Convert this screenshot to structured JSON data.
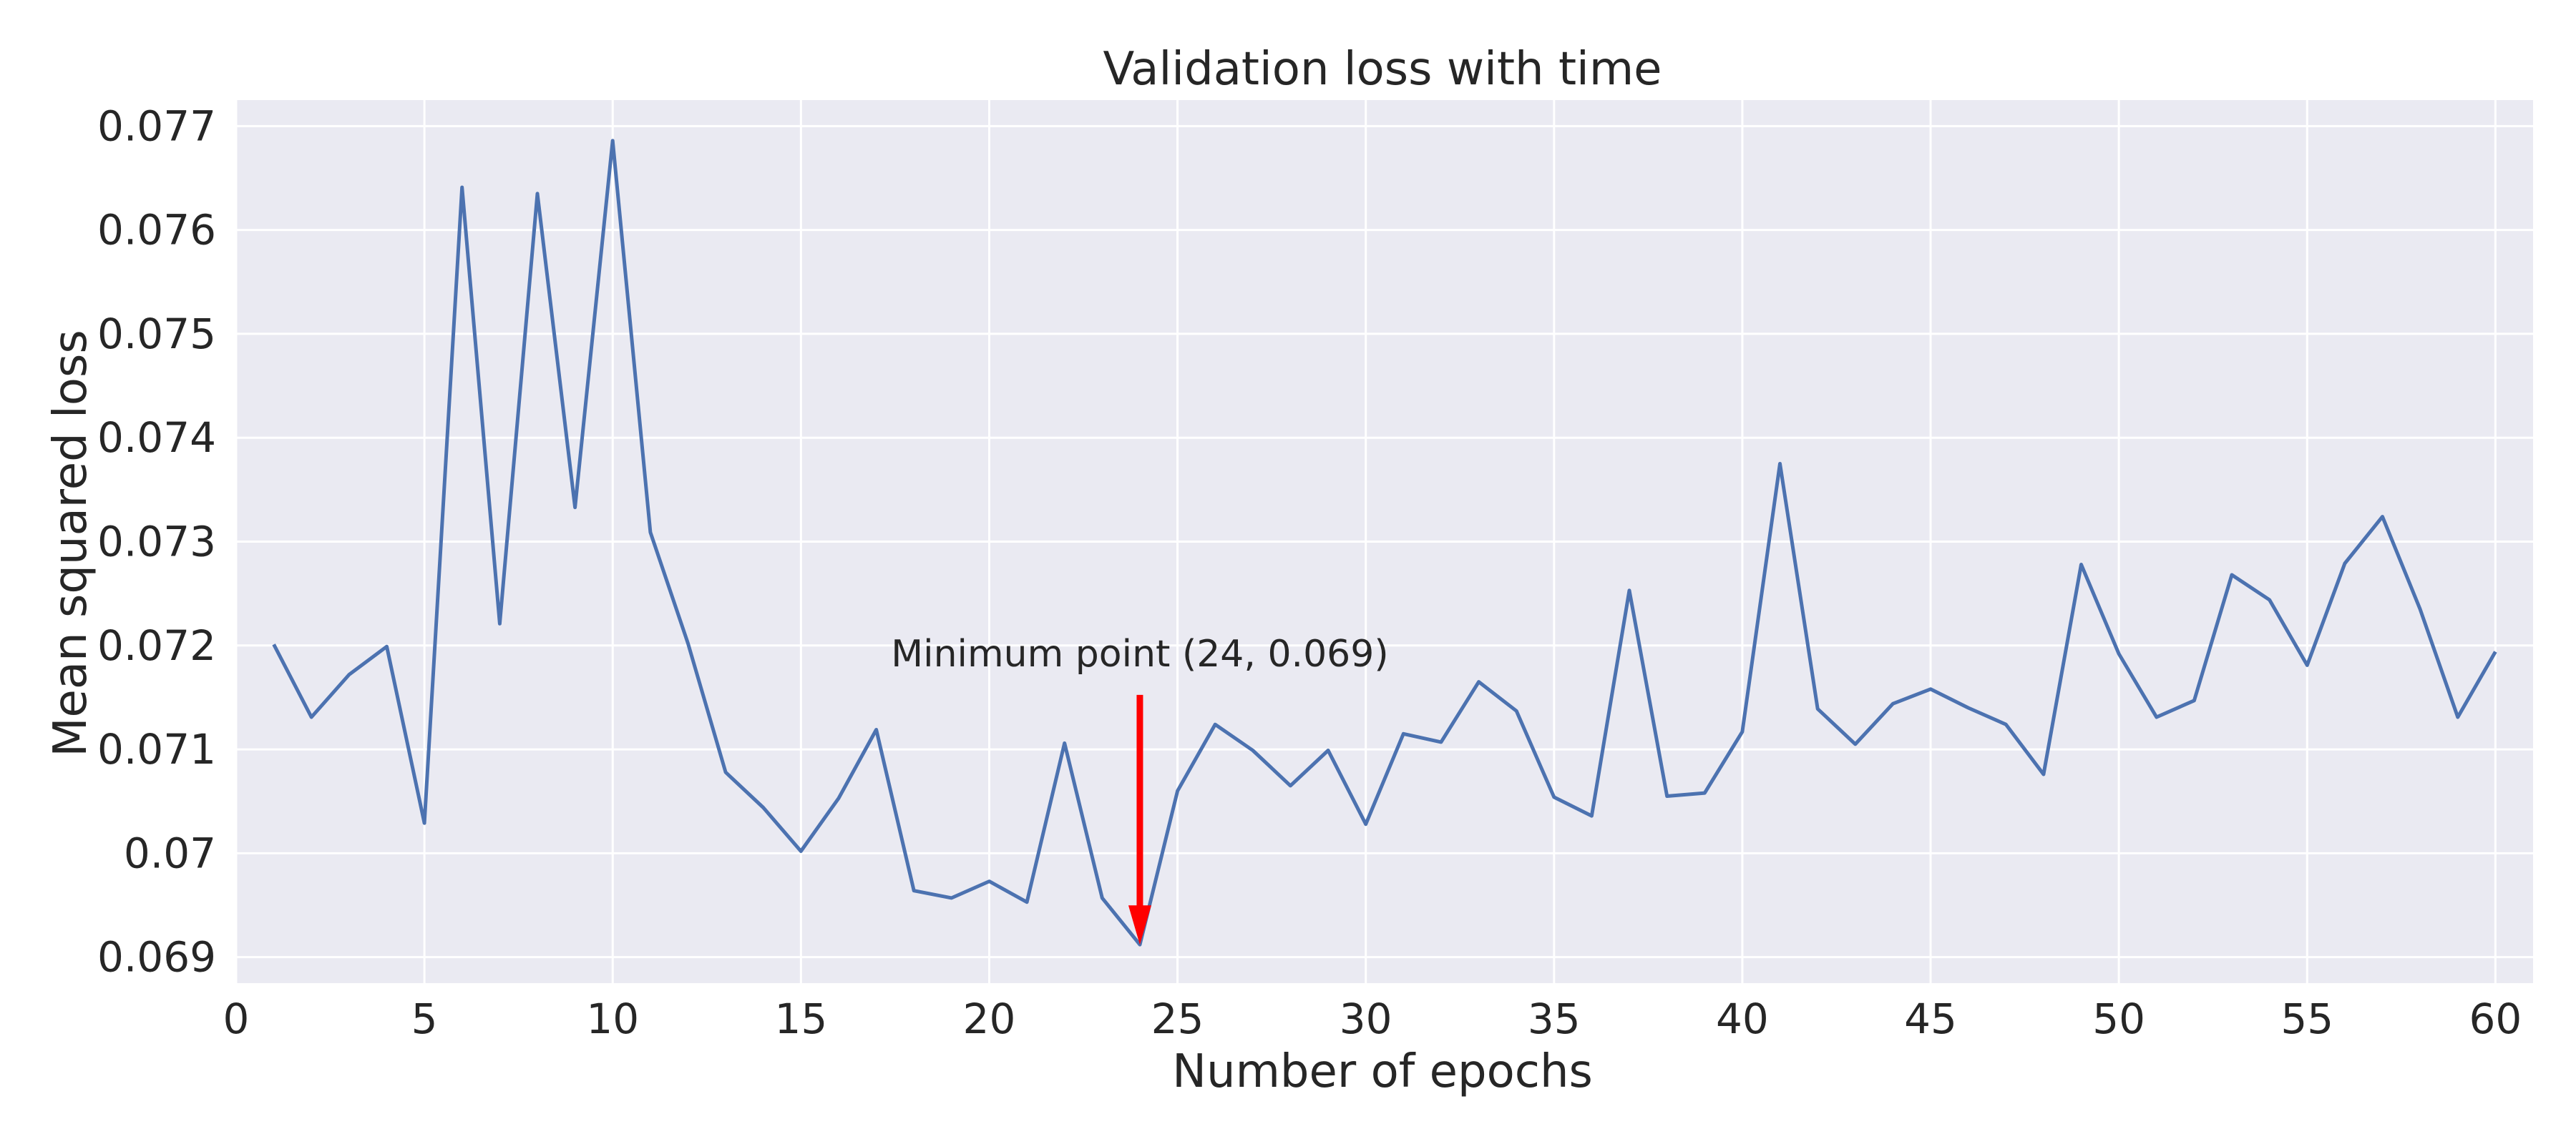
{
  "chart_data": {
    "type": "line",
    "title": "Validation loss with time",
    "xlabel": "Number of epochs",
    "ylabel": "Mean squared loss",
    "xlim": [
      0,
      61
    ],
    "ylim": [
      0.06875,
      0.07725
    ],
    "xticks": [
      0,
      5,
      10,
      15,
      20,
      25,
      30,
      35,
      40,
      45,
      50,
      55,
      60
    ],
    "yticks": [
      0.069,
      0.07,
      0.071,
      0.072,
      0.073,
      0.074,
      0.075,
      0.076,
      0.077
    ],
    "ytick_labels": [
      "0.069",
      "0.07",
      "0.071",
      "0.072",
      "0.073",
      "0.074",
      "0.075",
      "0.076",
      "0.077"
    ],
    "grid": true,
    "colors": {
      "background": "#EAEAF2",
      "grid": "#FFFFFF",
      "line": "#4C72B0",
      "annotation": "#FF0000"
    },
    "series": [
      {
        "x": [
          1,
          2,
          3,
          4,
          5,
          6,
          7,
          8,
          9,
          10,
          11,
          12,
          13,
          14,
          15,
          16,
          17,
          18,
          19,
          20,
          21,
          22,
          23,
          24,
          25,
          26,
          27,
          28,
          29,
          30,
          31,
          32,
          33,
          34,
          35,
          36,
          37,
          38,
          39,
          40,
          41,
          42,
          43,
          44,
          45,
          46,
          47,
          48,
          49,
          50,
          51,
          52,
          53,
          54,
          55,
          56,
          57,
          58,
          59,
          60
        ],
        "values": [
          0.07201,
          0.07131,
          0.07172,
          0.07199,
          0.07029,
          0.07641,
          0.07221,
          0.07635,
          0.07333,
          0.07686,
          0.07309,
          0.07202,
          0.07078,
          0.07044,
          0.07002,
          0.07053,
          0.07119,
          0.06964,
          0.06957,
          0.06973,
          0.06953,
          0.07106,
          0.06957,
          0.06912,
          0.0706,
          0.07124,
          0.07099,
          0.07065,
          0.07099,
          0.07028,
          0.07115,
          0.07107,
          0.07165,
          0.07137,
          0.07054,
          0.07036,
          0.07253,
          0.07055,
          0.07058,
          0.07117,
          0.07375,
          0.07139,
          0.07105,
          0.07144,
          0.07158,
          0.0714,
          0.07124,
          0.07076,
          0.07278,
          0.07192,
          0.07131,
          0.07147,
          0.07268,
          0.07244,
          0.07181,
          0.07279,
          0.07324,
          0.07235,
          0.07131,
          0.07194
        ]
      }
    ],
    "annotation": {
      "text": "Minimum point (24, 0.069)",
      "x": 24,
      "y": 0.06912,
      "text_y": 0.0718
    }
  }
}
